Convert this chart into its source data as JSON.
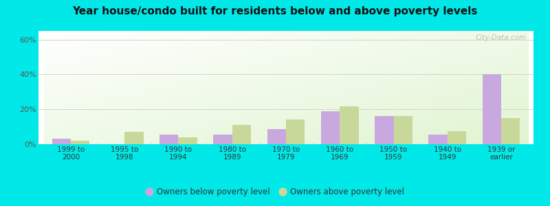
{
  "title": "Year house/condo built for residents below and above poverty levels",
  "categories": [
    "1999 to\n2000",
    "1995 to\n1998",
    "1990 to\n1994",
    "1980 to\n1989",
    "1970 to\n1979",
    "1960 to\n1969",
    "1950 to\n1959",
    "1940 to\n1949",
    "1939 or\nearlier"
  ],
  "below_poverty": [
    3.0,
    0.0,
    5.5,
    5.5,
    8.5,
    19.0,
    16.0,
    5.5,
    40.0
  ],
  "above_poverty": [
    2.0,
    7.0,
    4.0,
    11.0,
    14.0,
    21.5,
    16.0,
    7.5,
    15.0
  ],
  "below_color": "#c9a8e0",
  "above_color": "#c8d89a",
  "ylim": [
    0,
    65
  ],
  "yticks": [
    0,
    20,
    40,
    60
  ],
  "ytick_labels": [
    "0%",
    "20%",
    "40%",
    "60%"
  ],
  "outer_background": "#00e8e8",
  "gridline_color": "#d0d8c0",
  "bar_width": 0.35,
  "legend_below_label": "Owners below poverty level",
  "legend_above_label": "Owners above poverty level",
  "watermark": "City-Data.com"
}
